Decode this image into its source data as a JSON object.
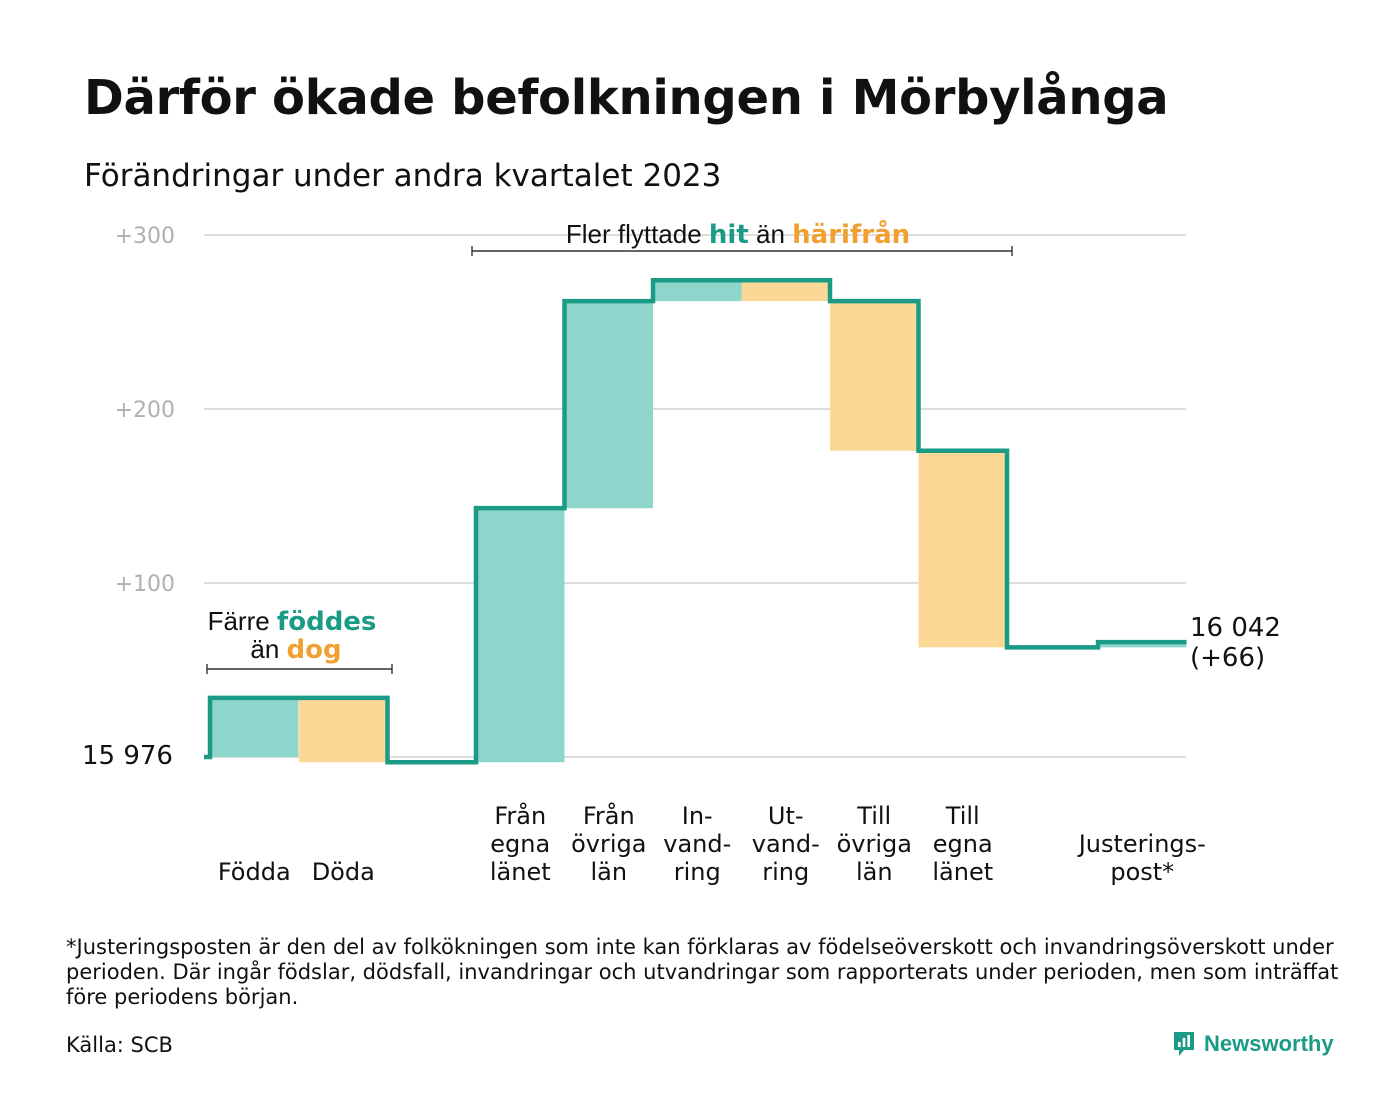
{
  "title": "Därför ökade befolkningen i Mörbylånga",
  "subtitle": "Förändringar under andra kvartalet 2023",
  "colors": {
    "increase_line": "#1b9a85",
    "increase_fill": "#8ed6cc",
    "decrease_fill": "#fcd896",
    "decrease_text": "#f0a030",
    "grid": "#dddddd",
    "tick_text": "#b0b0b0"
  },
  "chart_data": {
    "type": "waterfall",
    "start_value": 15976,
    "start_label": "15  976",
    "end_label_line1": "16 042",
    "end_label_line2": "(+66)",
    "y_axis": {
      "ticks": [
        100,
        200,
        300
      ],
      "tick_labels": [
        "+100",
        "+200",
        "+300"
      ],
      "range": [
        0,
        300
      ]
    },
    "steps": [
      {
        "name": "Födda",
        "label_lines": [
          "Födda"
        ],
        "delta": 34
      },
      {
        "name": "Döda",
        "label_lines": [
          "Döda"
        ],
        "delta": -37
      },
      {
        "name": "Från egna länet",
        "label_lines": [
          "Från",
          "egna",
          "länet"
        ],
        "delta": 146
      },
      {
        "name": "Från övriga län",
        "label_lines": [
          "Från",
          "övriga",
          "län"
        ],
        "delta": 119
      },
      {
        "name": "Invandring",
        "label_lines": [
          "In-",
          "vand-",
          "ring"
        ],
        "delta": 12
      },
      {
        "name": "Utvandring",
        "label_lines": [
          "Ut-",
          "vand-",
          "ring"
        ],
        "delta": -12
      },
      {
        "name": "Till övriga län",
        "label_lines": [
          "Till",
          "övriga",
          "län"
        ],
        "delta": -86
      },
      {
        "name": "Till egna länet",
        "label_lines": [
          "Till",
          "egna",
          "länet"
        ],
        "delta": -113
      },
      {
        "name": "Justeringspost*",
        "label_lines": [
          "Justerings-",
          "post*"
        ],
        "delta": 3
      }
    ],
    "annotations": {
      "births": {
        "line1_a": "Färre ",
        "line1_b": "föddes",
        "line2_a": "än ",
        "line2_b": "dog"
      },
      "migration": {
        "a": "Fler flyttade ",
        "b": "hit",
        "c": " än ",
        "d": "härifrån"
      }
    }
  },
  "footnote": "*Justeringsposten är den del av folkökningen som inte kan förklaras av födelseöverskott och invandringsöverskott under perioden. Där ingår födslar, dödsfall, invandringar och utvandringar som rapporterats under perioden, men som inträffat före periodens början.",
  "source": "Källa: SCB",
  "brand": "Newsworthy"
}
